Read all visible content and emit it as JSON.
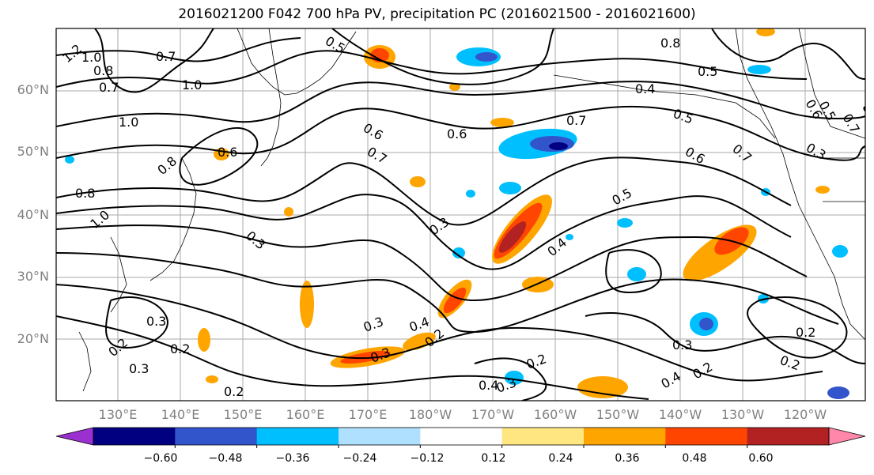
{
  "title": "2016021200 F042 700 hPa PV, precipitation PC (2016021500 - 2016021600)",
  "map": {
    "lat_labels": [
      "60°N",
      "50°N",
      "40°N",
      "30°N",
      "20°N"
    ],
    "lon_labels": [
      "130°E",
      "140°E",
      "150°E",
      "160°E",
      "170°E",
      "180°W",
      "170°W",
      "160°W",
      "150°W",
      "140°W",
      "130°W",
      "120°W"
    ],
    "pv_contour_labels": [
      "1.2",
      "1.0",
      "0.8",
      "0.7",
      "0.7",
      "1.0",
      "1.0",
      "0.8",
      "0.8",
      "1.0",
      "0.6",
      "0.3",
      "0.3",
      "0.2",
      "0.2",
      "0.3",
      "0.2",
      "0.5",
      "0.6",
      "0.7",
      "0.6",
      "0.8",
      "0.7",
      "0.5",
      "0.4",
      "0.5",
      "0.6",
      "0.7",
      "0.5",
      "0.3",
      "0.4",
      "0.3",
      "0.4",
      "0.3",
      "0.2",
      "0.3",
      "0.2",
      "0.4",
      "0.3",
      "0.4",
      "0.2",
      "0.2",
      "0.2",
      "0.6",
      "0.5",
      "0.7",
      "0.3"
    ],
    "colors": {
      "land_outline": "#000000",
      "grid": "#999999"
    }
  },
  "colorbar": {
    "tick_labels": [
      "−0.60",
      "−0.48",
      "−0.36",
      "−0.24",
      "−0.12",
      "0.12",
      "0.24",
      "0.36",
      "0.48",
      "0.60"
    ],
    "colors": [
      "#9b30d0",
      "#000080",
      "#3355cc",
      "#00bfff",
      "#b0e0ff",
      "#ffffff",
      "#ffe680",
      "#ffa500",
      "#ff4500",
      "#b22222",
      "#ff88aa"
    ]
  }
}
